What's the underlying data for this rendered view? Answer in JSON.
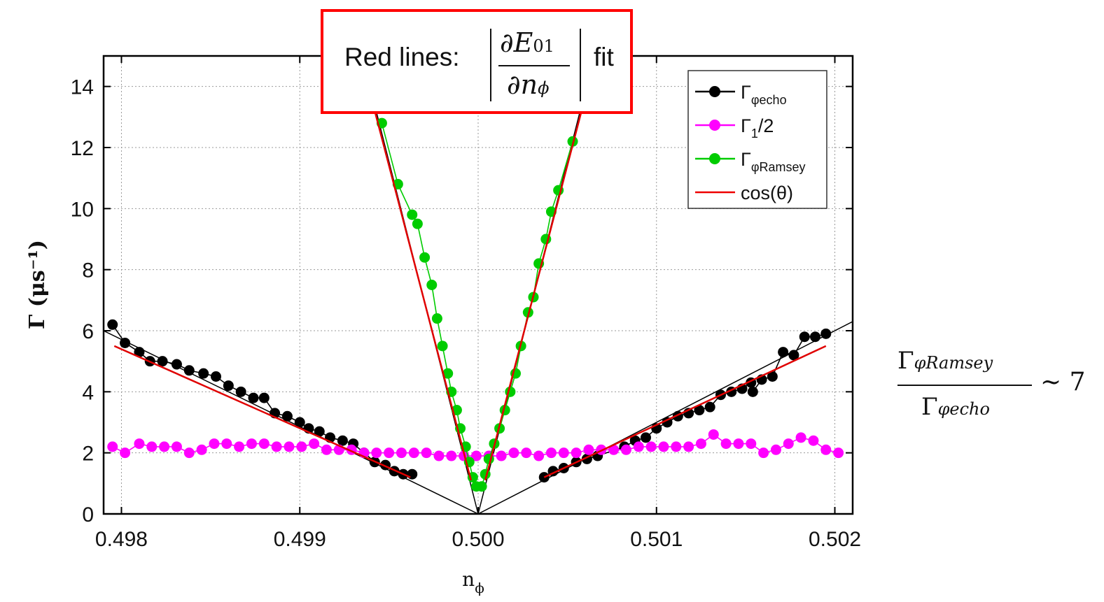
{
  "chart_data": {
    "type": "scatter",
    "title": "",
    "xlabel_main": "n",
    "xlabel_sub": "ϕ",
    "ylabel": "Γ (μs⁻¹)",
    "xlim": [
      0.4979,
      0.5021
    ],
    "ylim": [
      0,
      15
    ],
    "x_ticks": [
      {
        "value": 0.498,
        "label": "0.498"
      },
      {
        "value": 0.499,
        "label": "0.499"
      },
      {
        "value": 0.5,
        "label": "0.500"
      },
      {
        "value": 0.501,
        "label": "0.501"
      },
      {
        "value": 0.502,
        "label": "0.502"
      }
    ],
    "y_ticks": [
      {
        "value": 0,
        "label": "0"
      },
      {
        "value": 2,
        "label": "2"
      },
      {
        "value": 4,
        "label": "4"
      },
      {
        "value": 6,
        "label": "6"
      },
      {
        "value": 8,
        "label": "8"
      },
      {
        "value": 10,
        "label": "10"
      },
      {
        "value": 12,
        "label": "12"
      },
      {
        "value": 14,
        "label": "14"
      }
    ],
    "grid": true,
    "legend_position": "top-right",
    "legend": [
      {
        "main": "Γ",
        "sub": "φecho",
        "suffix": "",
        "color": "#000000",
        "marker": "circle"
      },
      {
        "main": "Γ",
        "sub": "1",
        "suffix": "/2",
        "color": "#ff00ff",
        "marker": "circle"
      },
      {
        "main": "Γ",
        "sub": "φRamsey",
        "suffix": "",
        "color": "#00cc00",
        "marker": "circle"
      },
      {
        "main": "cos(θ)",
        "sub": "",
        "suffix": "",
        "color": "#ee0000",
        "marker": "line"
      }
    ],
    "series": [
      {
        "id": "echo",
        "color": "#000000",
        "line_color": "#000000",
        "points": [
          [
            0.49795,
            6.2
          ],
          [
            0.49802,
            5.6
          ],
          [
            0.4981,
            5.3
          ],
          [
            0.49816,
            5.0
          ],
          [
            0.49823,
            5.0
          ],
          [
            0.49831,
            4.9
          ],
          [
            0.49838,
            4.7
          ],
          [
            0.49846,
            4.6
          ],
          [
            0.49853,
            4.5
          ],
          [
            0.4986,
            4.2
          ],
          [
            0.49867,
            4.0
          ],
          [
            0.49874,
            3.8
          ],
          [
            0.4988,
            3.8
          ],
          [
            0.49886,
            3.3
          ],
          [
            0.49893,
            3.2
          ],
          [
            0.499,
            3.0
          ],
          [
            0.49905,
            2.8
          ],
          [
            0.49911,
            2.7
          ],
          [
            0.49917,
            2.5
          ],
          [
            0.49924,
            2.4
          ],
          [
            0.4993,
            2.3
          ],
          [
            0.49936,
            2.0
          ],
          [
            0.49942,
            1.7
          ],
          [
            0.49948,
            1.6
          ],
          [
            0.49953,
            1.4
          ],
          [
            0.49958,
            1.3
          ],
          [
            0.49963,
            1.3
          ],
          [
            0.50037,
            1.2
          ],
          [
            0.50042,
            1.4
          ],
          [
            0.50048,
            1.5
          ],
          [
            0.50055,
            1.7
          ],
          [
            0.50061,
            1.8
          ],
          [
            0.50067,
            1.9
          ],
          [
            0.50082,
            2.2
          ],
          [
            0.50088,
            2.4
          ],
          [
            0.50094,
            2.5
          ],
          [
            0.501,
            2.8
          ],
          [
            0.50106,
            3.0
          ],
          [
            0.50112,
            3.2
          ],
          [
            0.50118,
            3.3
          ],
          [
            0.50124,
            3.4
          ],
          [
            0.5013,
            3.5
          ],
          [
            0.50136,
            3.9
          ],
          [
            0.50142,
            4.0
          ],
          [
            0.50148,
            4.1
          ],
          [
            0.50153,
            4.3
          ],
          [
            0.50159,
            4.4
          ],
          [
            0.50154,
            4.0
          ],
          [
            0.50165,
            4.5
          ],
          [
            0.50171,
            5.3
          ],
          [
            0.50177,
            5.2
          ],
          [
            0.50183,
            5.8
          ],
          [
            0.50189,
            5.8
          ],
          [
            0.50195,
            5.9
          ]
        ]
      },
      {
        "id": "gamma1",
        "color": "#ff00ff",
        "line_color": "#ff00ff",
        "points": [
          [
            0.49795,
            2.2
          ],
          [
            0.49802,
            2.0
          ],
          [
            0.4981,
            2.3
          ],
          [
            0.49817,
            2.2
          ],
          [
            0.49824,
            2.2
          ],
          [
            0.49831,
            2.2
          ],
          [
            0.49838,
            2.0
          ],
          [
            0.49845,
            2.1
          ],
          [
            0.49852,
            2.3
          ],
          [
            0.49859,
            2.3
          ],
          [
            0.49866,
            2.2
          ],
          [
            0.49873,
            2.3
          ],
          [
            0.4988,
            2.3
          ],
          [
            0.49887,
            2.2
          ],
          [
            0.49894,
            2.2
          ],
          [
            0.49901,
            2.2
          ],
          [
            0.49908,
            2.3
          ],
          [
            0.49915,
            2.1
          ],
          [
            0.49922,
            2.1
          ],
          [
            0.49929,
            2.1
          ],
          [
            0.49936,
            2.0
          ],
          [
            0.49943,
            2.0
          ],
          [
            0.4995,
            2.0
          ],
          [
            0.49957,
            2.0
          ],
          [
            0.49964,
            2.0
          ],
          [
            0.49971,
            2.0
          ],
          [
            0.49978,
            1.9
          ],
          [
            0.49985,
            1.9
          ],
          [
            0.49992,
            1.9
          ],
          [
            0.49999,
            1.9
          ],
          [
            0.50006,
            1.9
          ],
          [
            0.50013,
            1.9
          ],
          [
            0.5002,
            2.0
          ],
          [
            0.50027,
            2.0
          ],
          [
            0.50034,
            1.9
          ],
          [
            0.50041,
            2.0
          ],
          [
            0.50048,
            2.0
          ],
          [
            0.50055,
            2.0
          ],
          [
            0.50062,
            2.1
          ],
          [
            0.50069,
            2.1
          ],
          [
            0.50076,
            2.1
          ],
          [
            0.50083,
            2.1
          ],
          [
            0.5009,
            2.2
          ],
          [
            0.50097,
            2.2
          ],
          [
            0.50104,
            2.2
          ],
          [
            0.50111,
            2.2
          ],
          [
            0.50118,
            2.2
          ],
          [
            0.50125,
            2.3
          ],
          [
            0.50132,
            2.6
          ],
          [
            0.50139,
            2.3
          ],
          [
            0.50146,
            2.3
          ],
          [
            0.50153,
            2.3
          ],
          [
            0.5016,
            2.0
          ],
          [
            0.50167,
            2.1
          ],
          [
            0.50174,
            2.3
          ],
          [
            0.50181,
            2.5
          ],
          [
            0.50188,
            2.4
          ],
          [
            0.50195,
            2.1
          ],
          [
            0.50202,
            2.0
          ]
        ]
      },
      {
        "id": "ramsey",
        "color": "#00cc00",
        "line_color": "#00cc00",
        "points": [
          [
            0.49946,
            12.8
          ],
          [
            0.49955,
            10.8
          ],
          [
            0.49963,
            9.8
          ],
          [
            0.49966,
            9.5
          ],
          [
            0.4997,
            8.4
          ],
          [
            0.49974,
            7.5
          ],
          [
            0.49977,
            6.4
          ],
          [
            0.4998,
            5.5
          ],
          [
            0.49983,
            4.6
          ],
          [
            0.49985,
            4.0
          ],
          [
            0.49988,
            3.4
          ],
          [
            0.4999,
            2.8
          ],
          [
            0.49993,
            2.2
          ],
          [
            0.49995,
            1.7
          ],
          [
            0.49997,
            1.2
          ],
          [
            0.49999,
            0.9
          ],
          [
            0.50002,
            0.9
          ],
          [
            0.50004,
            1.3
          ],
          [
            0.50006,
            1.8
          ],
          [
            0.50009,
            2.3
          ],
          [
            0.50012,
            2.8
          ],
          [
            0.50015,
            3.4
          ],
          [
            0.50018,
            4.0
          ],
          [
            0.50021,
            4.6
          ],
          [
            0.50024,
            5.5
          ],
          [
            0.50028,
            6.6
          ],
          [
            0.50031,
            7.1
          ],
          [
            0.50034,
            8.2
          ],
          [
            0.50038,
            9.0
          ],
          [
            0.50041,
            9.9
          ],
          [
            0.50045,
            10.6
          ],
          [
            0.50053,
            12.2
          ]
        ]
      }
    ],
    "fit_lines_black": [
      [
        [
          0.4979,
          6.0
        ],
        [
          0.5,
          0.0
        ],
        [
          0.5021,
          6.3
        ]
      ],
      [
        [
          0.49935,
          15.0
        ],
        [
          0.5,
          0.0
        ],
        [
          0.50065,
          15.0
        ]
      ]
    ],
    "fit_lines_red": [
      [
        [
          0.49796,
          5.5
        ],
        [
          0.49962,
          1.2
        ]
      ],
      [
        [
          0.50037,
          1.2
        ],
        [
          0.50195,
          5.5
        ]
      ],
      [
        [
          0.49934,
          15.0
        ],
        [
          0.49996,
          1.1
        ]
      ],
      [
        [
          0.50004,
          1.1
        ],
        [
          0.50066,
          15.0
        ]
      ]
    ]
  },
  "annotation": {
    "prefix": "Red lines:",
    "numerator": "∂E",
    "numerator_sub": "01",
    "denominator": "∂n",
    "denominator_sub": "ϕ",
    "suffix": "fit"
  },
  "ratio": {
    "numerator": "Γ",
    "numerator_sub": "φRamsey",
    "denominator": "Γ",
    "denominator_sub": "φecho",
    "relation": "~ 7"
  }
}
